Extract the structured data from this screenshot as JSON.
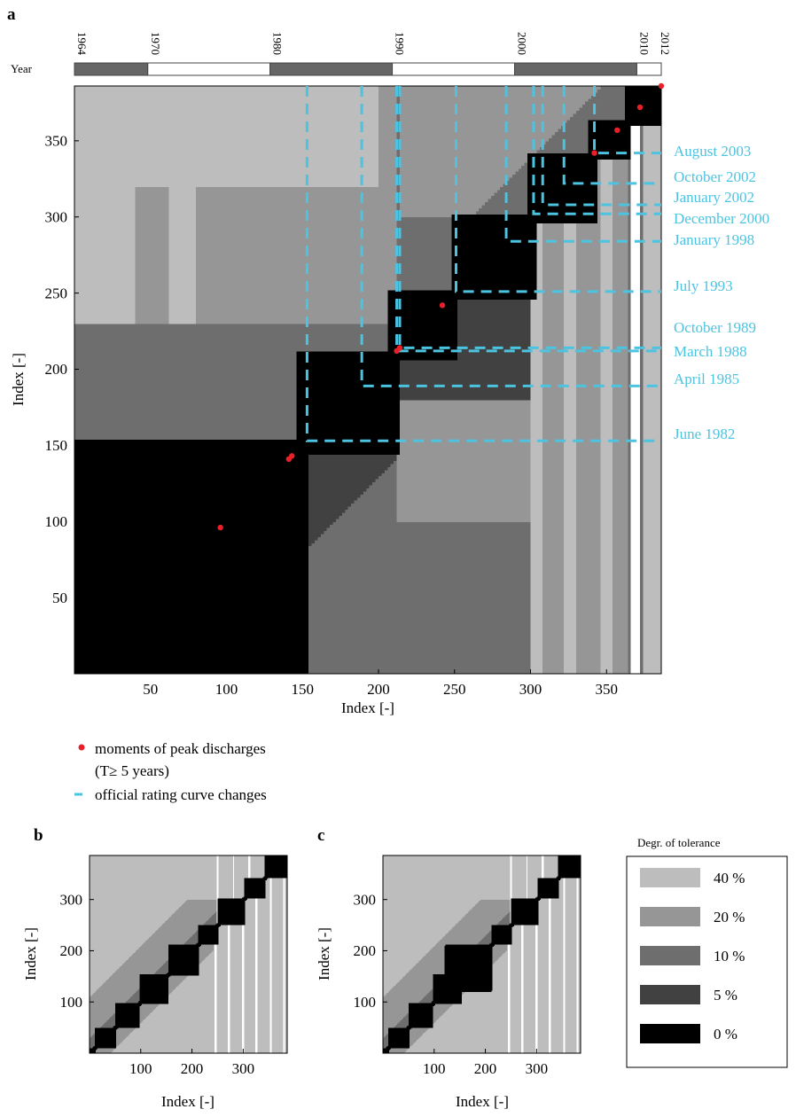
{
  "panel_labels": {
    "a": "a",
    "b": "b",
    "c": "c"
  },
  "year_bar": {
    "label": "Year",
    "ticks": [
      "1964",
      "1970",
      "1980",
      "1990",
      "2000",
      "2010",
      "2012"
    ],
    "colors": {
      "dark": "#666666",
      "light": "#ffffff"
    }
  },
  "annotations": [
    {
      "text": "August 2003",
      "y": 342
    },
    {
      "text": "October 2002",
      "y": 322
    },
    {
      "text": "January 2002",
      "y": 308
    },
    {
      "text": "December 2000",
      "y": 302
    },
    {
      "text": "January 1998",
      "y": 284
    },
    {
      "text": "July 1993",
      "y": 251
    },
    {
      "text": "October 1989",
      "y": 214
    },
    {
      "text": "March 1988",
      "y": 212
    },
    {
      "text": "April 1985",
      "y": 189
    },
    {
      "text": "June 1982",
      "y": 153
    }
  ],
  "legend_a": {
    "peak_label": "moments of peak discharges",
    "peak_sub": "(T≥ 5 years)",
    "curve_label": "official rating curve changes",
    "peak_color": "#e8202a",
    "curve_color": "#4cc3e0"
  },
  "tolerance_legend": {
    "title": "Degr. of tolerance",
    "items": [
      {
        "label": "40 %",
        "color": "#bdbdbd"
      },
      {
        "label": "20 %",
        "color": "#969696"
      },
      {
        "label": "10 %",
        "color": "#6e6e6e"
      },
      {
        "label": "5 %",
        "color": "#414141"
      },
      {
        "label": "0 %",
        "color": "#000000"
      }
    ]
  },
  "chart_data": [
    {
      "panel": "a",
      "type": "heatmap",
      "xlabel": "Index [-]",
      "ylabel": "Index [-]",
      "xlim": [
        0,
        386
      ],
      "ylim": [
        0,
        386
      ],
      "xticks": [
        50,
        100,
        150,
        200,
        250,
        300,
        350
      ],
      "yticks": [
        50,
        100,
        150,
        200,
        250,
        300,
        350
      ],
      "peak_points": [
        {
          "x": 96,
          "y": 96
        },
        {
          "x": 141,
          "y": 141
        },
        {
          "x": 143,
          "y": 143
        },
        {
          "x": 212,
          "y": 212
        },
        {
          "x": 214,
          "y": 214
        },
        {
          "x": 242,
          "y": 242
        },
        {
          "x": 342,
          "y": 342
        },
        {
          "x": 357,
          "y": 357
        },
        {
          "x": 372,
          "y": 372
        },
        {
          "x": 386,
          "y": 386
        }
      ],
      "rating_curve_changes": [
        153,
        189,
        212,
        214,
        251,
        284,
        302,
        308,
        322,
        342
      ]
    },
    {
      "panel": "b",
      "type": "heatmap",
      "xlabel": "Index [-]",
      "ylabel": "Index [-]",
      "xlim": [
        0,
        386
      ],
      "ylim": [
        0,
        386
      ],
      "xticks": [
        100,
        200,
        300
      ],
      "yticks": [
        100,
        200,
        300
      ]
    },
    {
      "panel": "c",
      "type": "heatmap",
      "xlabel": "Index [-]",
      "ylabel": "Index [-]",
      "xlim": [
        0,
        386
      ],
      "ylim": [
        0,
        386
      ],
      "xticks": [
        100,
        200,
        300
      ],
      "yticks": [
        100,
        200,
        300
      ]
    }
  ]
}
